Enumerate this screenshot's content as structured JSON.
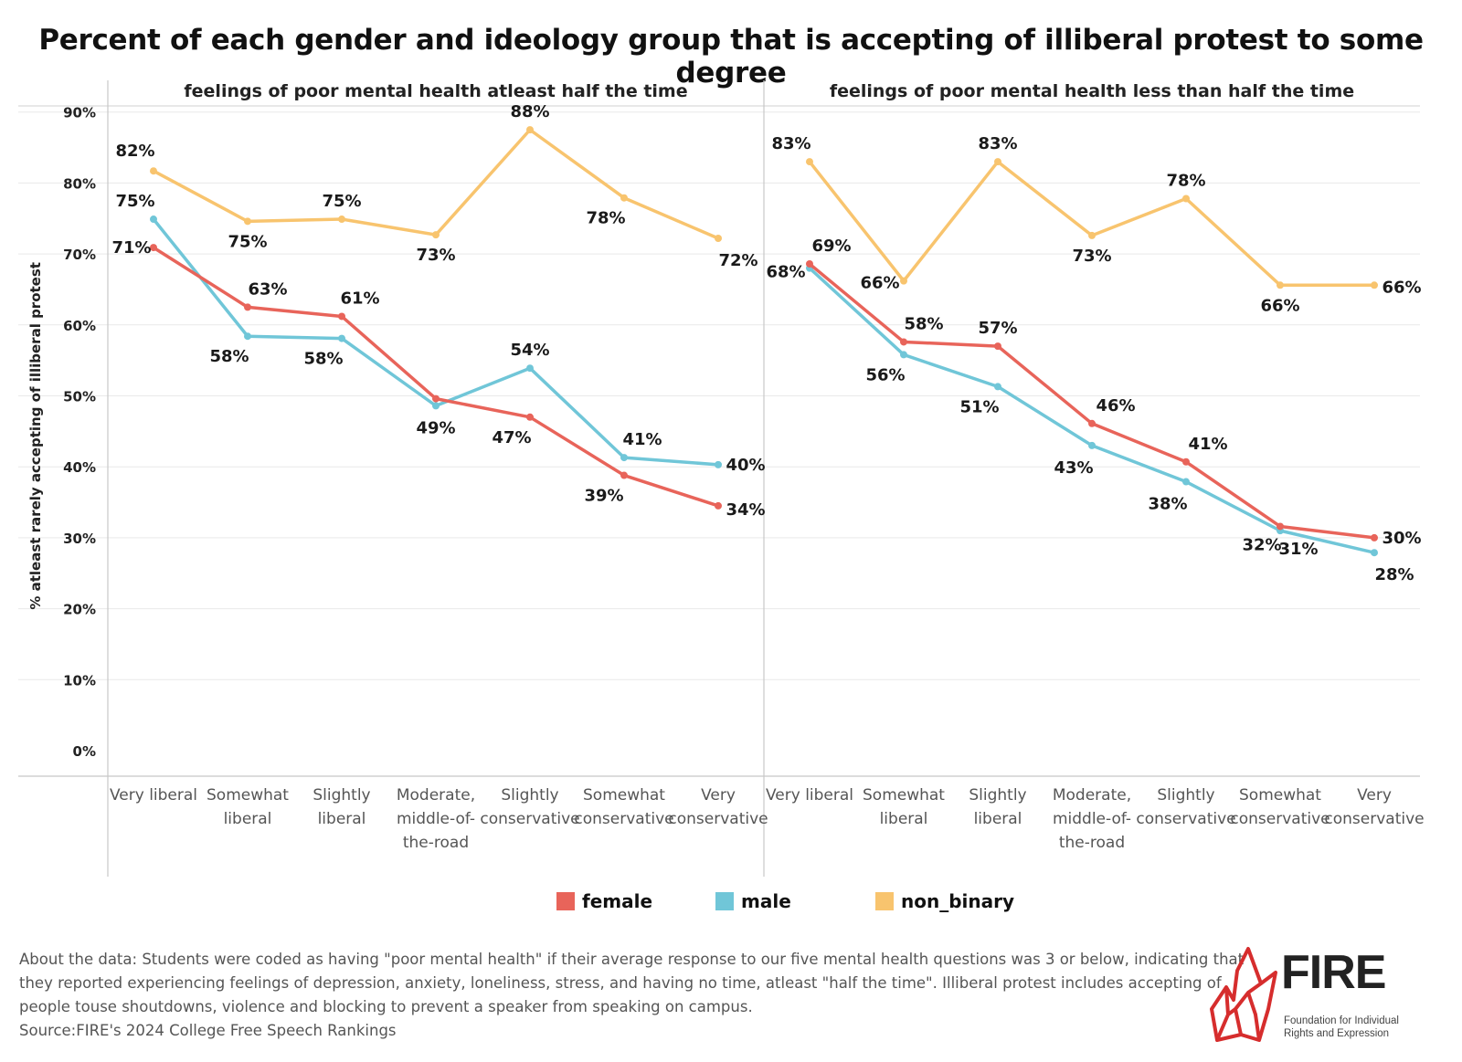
{
  "title": "Percent of each gender and ideology group that is accepting of illiberal protest to some degree",
  "chart_data": {
    "type": "line",
    "ylabel": "% atleast rarely accepting of illiberal protest",
    "ylim": [
      0,
      90
    ],
    "yticks": [
      "0%",
      "10%",
      "20%",
      "30%",
      "40%",
      "50%",
      "60%",
      "70%",
      "80%",
      "90%"
    ],
    "grid": true,
    "legend_position": "bottom",
    "categories": [
      [
        "Very liberal"
      ],
      [
        "Somewhat",
        "liberal"
      ],
      [
        "Slightly",
        "liberal"
      ],
      [
        "Moderate,",
        "middle-of-",
        "the-road"
      ],
      [
        "Slightly",
        "conservative"
      ],
      [
        "Somewhat",
        "conservative"
      ],
      [
        "Very",
        "conservative"
      ]
    ],
    "series_colors": {
      "female": "#e8645a",
      "male": "#70c6d8",
      "non_binary": "#f8c46e"
    },
    "panels": [
      {
        "title": "feelings of poor mental health atleast half the time",
        "series": [
          {
            "name": "female",
            "values": [
              70.9,
              62.5,
              61.2,
              49.6,
              47.0,
              38.8,
              34.5
            ],
            "labels": [
              "71%",
              "63%",
              "61%",
              "",
              "47%",
              "39%",
              "34%"
            ]
          },
          {
            "name": "male",
            "values": [
              74.9,
              58.4,
              58.1,
              48.6,
              53.9,
              41.3,
              40.3
            ],
            "labels": [
              "75%",
              "58%",
              "58%",
              "49%",
              "54%",
              "41%",
              "40%"
            ]
          },
          {
            "name": "non_binary",
            "values": [
              81.7,
              74.6,
              74.9,
              72.7,
              87.5,
              77.9,
              72.2
            ],
            "labels": [
              "82%",
              "75%",
              "75%",
              "73%",
              "88%",
              "78%",
              "72%"
            ]
          }
        ]
      },
      {
        "title": "feelings of poor mental health less than half the time",
        "series": [
          {
            "name": "female",
            "values": [
              68.6,
              57.6,
              57.0,
              46.1,
              40.7,
              31.6,
              30.0
            ],
            "labels": [
              "69%",
              "58%",
              "57%",
              "46%",
              "41%",
              "32%",
              "30%"
            ]
          },
          {
            "name": "male",
            "values": [
              68.0,
              55.8,
              51.3,
              43.0,
              37.9,
              31.0,
              27.9
            ],
            "labels": [
              "68%",
              "56%",
              "51%",
              "43%",
              "38%",
              "31%",
              "28%"
            ]
          },
          {
            "name": "non_binary",
            "values": [
              83.0,
              66.2,
              83.0,
              72.6,
              77.8,
              65.6,
              65.6
            ],
            "labels": [
              "83%",
              "66%",
              "83%",
              "73%",
              "78%",
              "66%",
              "66%"
            ]
          }
        ]
      }
    ]
  },
  "legend": [
    {
      "name": "female",
      "color": "#e8645a"
    },
    {
      "name": "male",
      "color": "#70c6d8"
    },
    {
      "name": "non_binary",
      "color": "#f8c46e"
    }
  ],
  "footnote": {
    "line1": "About the data: Students were coded as having \"poor mental health\" if their average response to our five mental health questions was 3 or below, indicating that",
    "line2": "they reported experiencing feelings of depression, anxiety, loneliness, stress, and having no time, atleast \"half the time\". Illiberal protest includes accepting of",
    "line3": "people touse shoutdowns, violence and blocking to prevent a speaker from speaking on campus.",
    "source": "Source:FIRE's 2024 College Free Speech Rankings"
  },
  "logo": {
    "wordmark": "FIRE",
    "line1": "Foundation for Individual",
    "line2": "Rights and Expression",
    "color": "#d62d2d"
  }
}
